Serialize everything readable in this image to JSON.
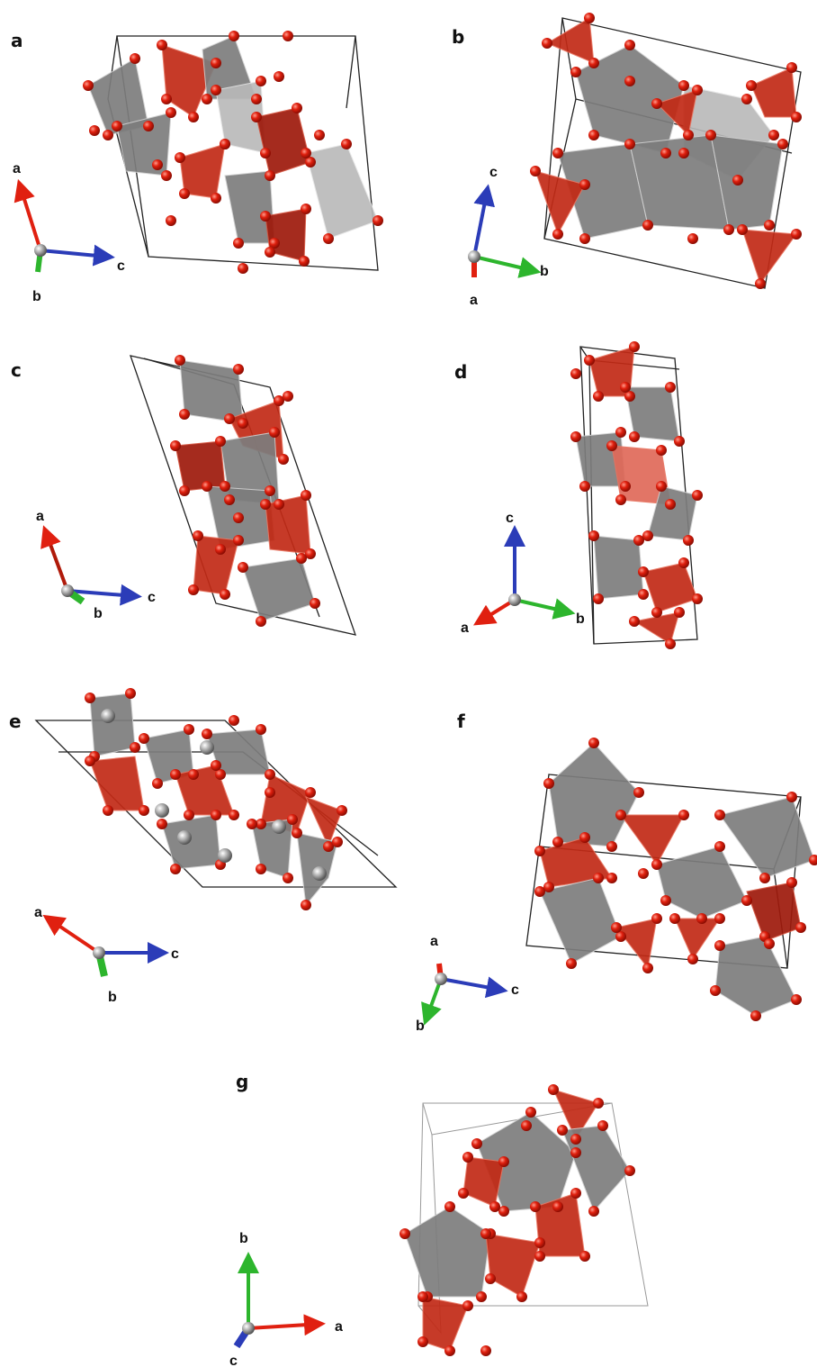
{
  "panels": [
    {
      "label": "a",
      "axes": [
        "a",
        "c",
        "b"
      ]
    },
    {
      "label": "b",
      "axes": [
        "c",
        "b",
        "a"
      ]
    },
    {
      "label": "c",
      "axes": [
        "a",
        "c",
        "b"
      ]
    },
    {
      "label": "d",
      "axes": [
        "c",
        "a",
        "b"
      ]
    },
    {
      "label": "e",
      "axes": [
        "a",
        "c",
        "b"
      ]
    },
    {
      "label": "f",
      "axes": [
        "a",
        "c",
        "b"
      ]
    },
    {
      "label": "g",
      "axes": [
        "b",
        "a",
        "c"
      ]
    }
  ]
}
